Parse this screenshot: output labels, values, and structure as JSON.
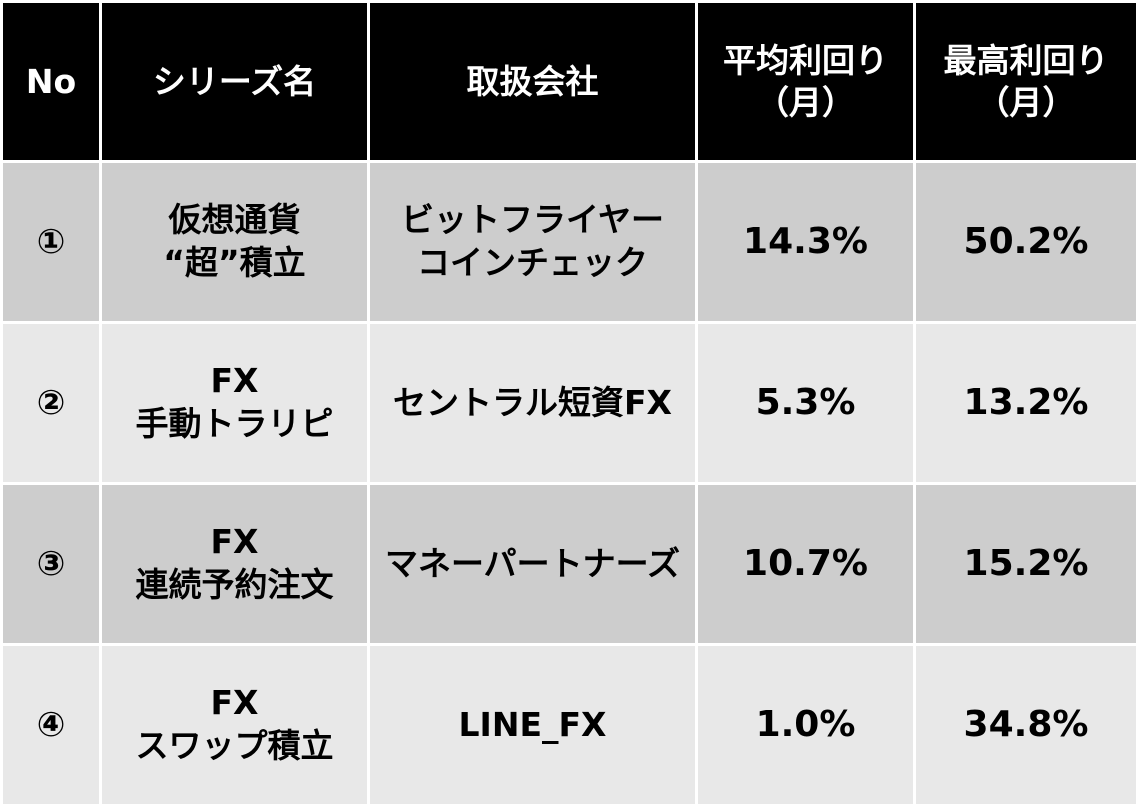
{
  "header": {
    "no": "No",
    "series": "シリーズ名",
    "company": "取扱会社",
    "avg_yield": [
      "平均利回り",
      "（月）"
    ],
    "max_yield": [
      "最高利回り",
      "（月）"
    ]
  },
  "rows": [
    {
      "no": "①",
      "series": [
        "仮想通貨",
        "“超”積立"
      ],
      "company": [
        "ビットフライヤー",
        "コインチェック"
      ],
      "avg": "14.3%",
      "max": "50.2%"
    },
    {
      "no": "②",
      "series": [
        "FX",
        "手動トラリピ"
      ],
      "company": [
        "セントラル短資FX"
      ],
      "avg": "5.3%",
      "max": "13.2%"
    },
    {
      "no": "③",
      "series": [
        "FX",
        "連続予約注文"
      ],
      "company": [
        "マネーパートナーズ"
      ],
      "avg": "10.7%",
      "max": "15.2%"
    },
    {
      "no": "④",
      "series": [
        "FX",
        "スワップ積立"
      ],
      "company": [
        "LINE_FX"
      ],
      "avg": "1.0%",
      "max": "34.8%"
    }
  ],
  "colors": {
    "header_bg": "#000000",
    "header_text": "#ffffff",
    "row_odd_bg": "#cdcdcd",
    "row_even_bg": "#e8e8e8",
    "border": "#ffffff"
  }
}
